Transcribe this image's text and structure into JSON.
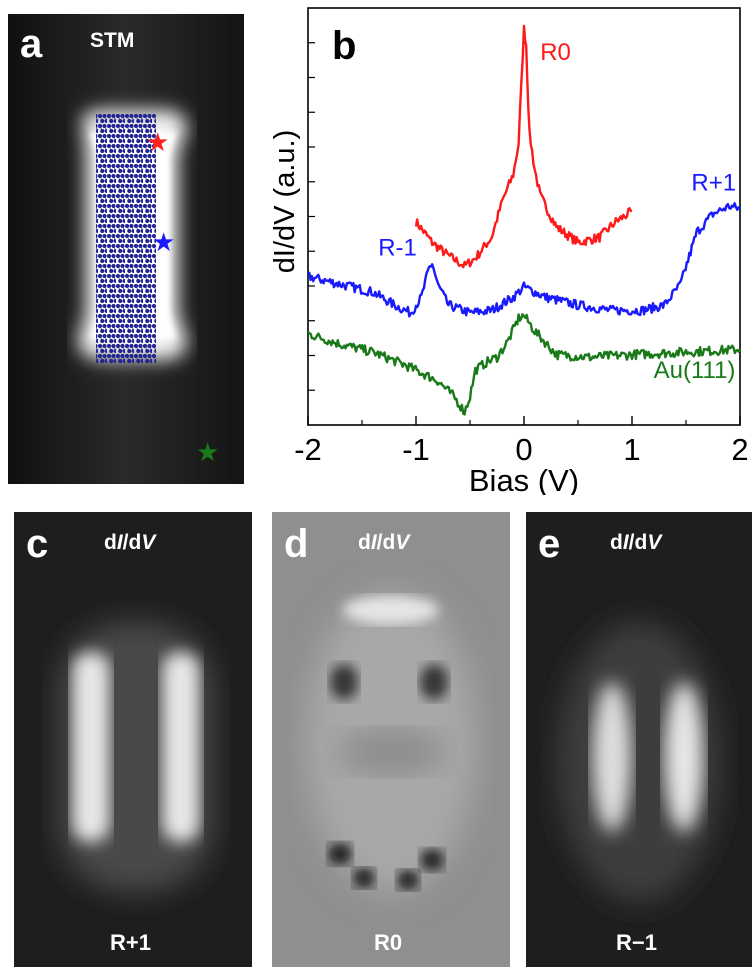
{
  "panels": {
    "a": {
      "label": "a",
      "title": "STM"
    },
    "b": {
      "label": "b"
    },
    "c": {
      "label": "c",
      "title_prefix": "d",
      "title_var1": "I",
      "title_mid": "/d",
      "title_var2": "V",
      "caption": "R+1"
    },
    "d": {
      "label": "d",
      "title_prefix": "d",
      "title_var1": "I",
      "title_mid": "/d",
      "title_var2": "V",
      "caption": "R0"
    },
    "e": {
      "label": "e",
      "title_prefix": "d",
      "title_var1": "I",
      "title_mid": "/d",
      "title_var2": "V",
      "caption": "R−1"
    }
  },
  "markers": {
    "colors": {
      "red": "#ff2020",
      "blue": "#1a1aff",
      "green": "#1a7a1a"
    }
  },
  "chart_data": {
    "type": "line",
    "xlabel": "Bias (V)",
    "ylabel": "dI/dV (a.u.)",
    "xlim": [
      -2,
      2
    ],
    "xticks": [
      "-2",
      "-1",
      "0",
      "1",
      "2"
    ],
    "grid": false,
    "series": [
      {
        "name": "R0",
        "color": "#ff1a1a",
        "x": [
          -1.0,
          -0.85,
          -0.7,
          -0.55,
          -0.45,
          -0.3,
          -0.2,
          -0.1,
          -0.05,
          0.0,
          0.02,
          0.05,
          0.1,
          0.15,
          0.3,
          0.5,
          0.7,
          0.85,
          1.0
        ],
        "y": [
          3.9,
          3.5,
          3.25,
          3.05,
          3.2,
          3.6,
          4.3,
          4.8,
          5.4,
          7.6,
          7.3,
          5.6,
          4.9,
          4.4,
          3.8,
          3.5,
          3.6,
          3.9,
          4.1
        ],
        "annotation": "R0"
      },
      {
        "name": "R+1 / R-1",
        "color": "#1a1aff",
        "x": [
          -2.0,
          -1.7,
          -1.4,
          -1.2,
          -1.05,
          -0.95,
          -0.88,
          -0.85,
          -0.8,
          -0.7,
          -0.5,
          -0.3,
          -0.1,
          0.0,
          0.2,
          0.5,
          0.8,
          1.1,
          1.3,
          1.45,
          1.6,
          1.75,
          1.9,
          2.0
        ],
        "y": [
          2.85,
          2.7,
          2.55,
          2.3,
          2.15,
          2.45,
          3.0,
          3.1,
          2.7,
          2.3,
          2.15,
          2.2,
          2.45,
          2.65,
          2.45,
          2.3,
          2.2,
          2.2,
          2.3,
          2.7,
          3.7,
          4.05,
          4.2,
          4.15
        ],
        "annotations": [
          "R-1",
          "R+1"
        ]
      },
      {
        "name": "Au(111)",
        "color": "#1a7a1a",
        "x": [
          -2.0,
          -1.7,
          -1.4,
          -1.1,
          -0.8,
          -0.65,
          -0.55,
          -0.5,
          -0.45,
          -0.35,
          -0.25,
          -0.15,
          -0.05,
          0.0,
          0.1,
          0.3,
          0.6,
          1.0,
          1.5,
          2.0
        ],
        "y": [
          1.75,
          1.55,
          1.4,
          1.15,
          0.85,
          0.55,
          0.25,
          0.55,
          1.05,
          1.2,
          1.3,
          1.6,
          2.05,
          2.1,
          1.8,
          1.35,
          1.3,
          1.35,
          1.4,
          1.45
        ],
        "annotation": "Au(111)"
      }
    ],
    "labels": {
      "R0": "R0",
      "Rm1": "R-1",
      "Rp1": "R+1",
      "Au": "Au(111)"
    }
  }
}
